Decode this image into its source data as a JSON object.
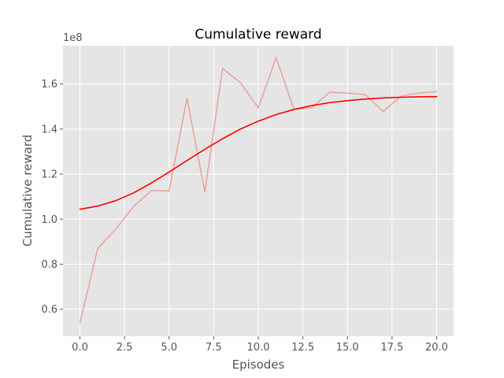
{
  "chart_data": {
    "type": "line",
    "title": "Cumulative reward",
    "xlabel": "Episodes",
    "ylabel": "Cumulative reward",
    "y_offset_label": "1e8",
    "xlim": [
      -0.95,
      20.95
    ],
    "ylim": [
      0.48,
      1.77
    ],
    "x_ticks": [
      0,
      2.5,
      5,
      7.5,
      10,
      12.5,
      15,
      17.5,
      20
    ],
    "x_tick_labels": [
      "0.0",
      "2.5",
      "5.0",
      "7.5",
      "10.0",
      "12.5",
      "15.0",
      "17.5",
      "20.0"
    ],
    "y_ticks": [
      0.6,
      0.8,
      1.0,
      1.2,
      1.4,
      1.6
    ],
    "y_tick_labels": [
      "0.6",
      "0.8",
      "1.0",
      "1.2",
      "1.4",
      "1.6"
    ],
    "grid": true,
    "background": "#e5e5e5",
    "x": [
      0,
      1,
      2,
      3,
      4,
      5,
      6,
      7,
      8,
      9,
      10,
      11,
      12,
      13,
      14,
      15,
      16,
      17,
      18,
      19,
      20
    ],
    "series": [
      {
        "color": "#e8a09b",
        "values": [
          0.54,
          0.87,
          0.955,
          1.055,
          1.127,
          1.125,
          1.537,
          1.12,
          1.669,
          1.605,
          1.494,
          1.717,
          1.487,
          1.495,
          1.563,
          1.56,
          1.553,
          1.478,
          1.546,
          1.56,
          1.566
        ]
      },
      {
        "color": "#ff0000",
        "values": [
          1.044,
          1.058,
          1.082,
          1.116,
          1.16,
          1.209,
          1.26,
          1.31,
          1.357,
          1.4,
          1.435,
          1.464,
          1.487,
          1.504,
          1.517,
          1.526,
          1.533,
          1.538,
          1.541,
          1.543,
          1.544
        ]
      }
    ]
  }
}
